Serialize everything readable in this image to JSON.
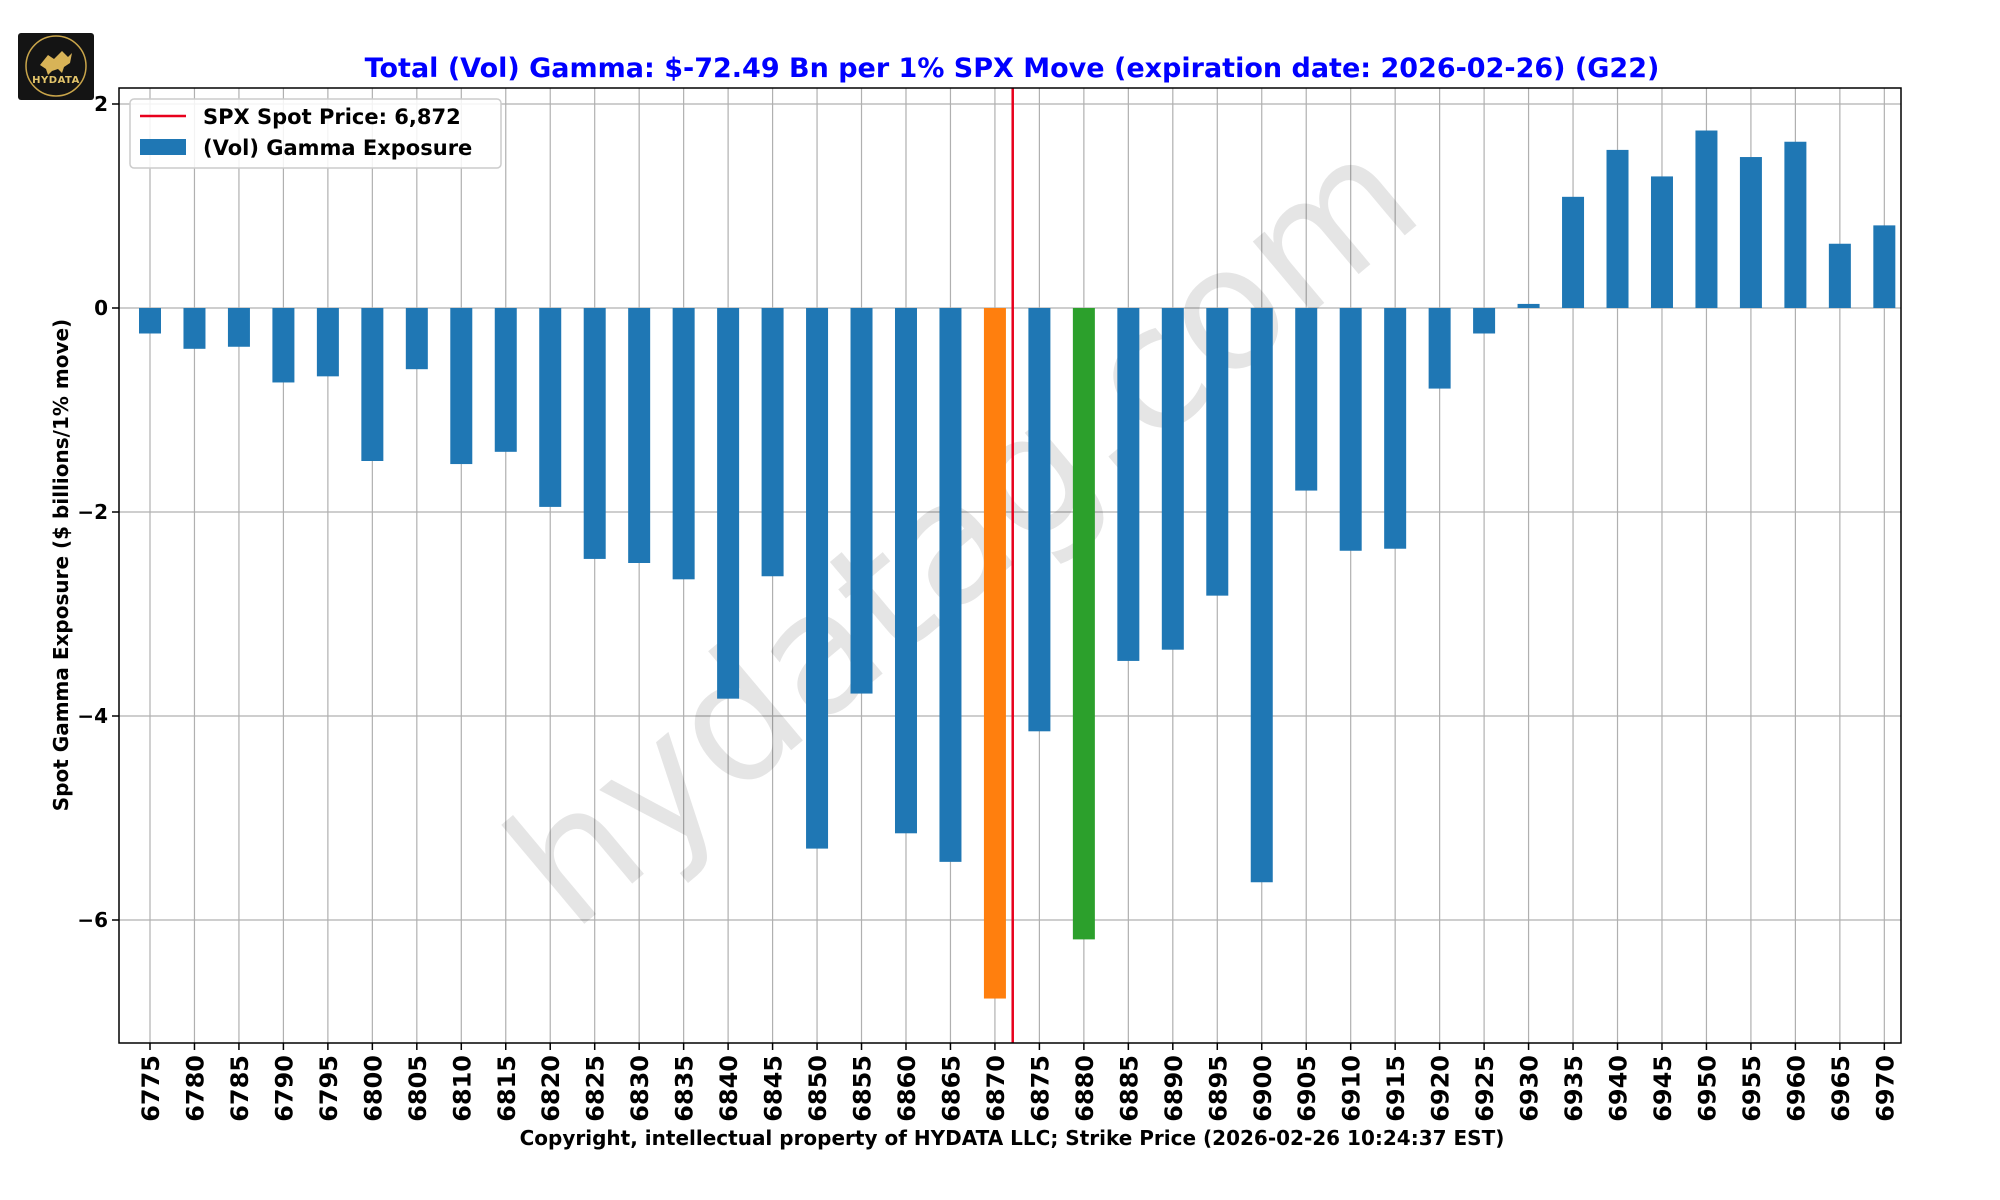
{
  "chart_data": {
    "type": "bar",
    "title": "Total (Vol) Gamma: $-72.49 Bn per 1% SPX Move (expiration date: 2026-02-26) (G22)",
    "xlabel": "Copyright, intellectual property of HYDATA LLC; Strike Price (2026-02-26 10:24:37 EST)",
    "ylabel": "Spot Gamma Exposure ($ billions/1% move)",
    "ylim": [
      -7.2,
      2.1
    ],
    "yticks": [
      2,
      0,
      -2,
      -4,
      -6
    ],
    "ytick_labels": [
      "2",
      "0",
      "−2",
      "−4",
      "−6"
    ],
    "grid": true,
    "legend_position": "top-left",
    "legend": [
      {
        "label": "SPX Spot Price: 6,872",
        "type": "line",
        "color": "#e8001c"
      },
      {
        "label": "(Vol) Gamma Exposure",
        "type": "bar",
        "color": "#1f77b4"
      }
    ],
    "spot_price": 6872,
    "categories": [
      "6775",
      "6780",
      "6785",
      "6790",
      "6795",
      "6800",
      "6805",
      "6810",
      "6815",
      "6820",
      "6825",
      "6830",
      "6835",
      "6840",
      "6845",
      "6850",
      "6855",
      "6860",
      "6865",
      "6870",
      "6875",
      "6880",
      "6885",
      "6890",
      "6895",
      "6900",
      "6905",
      "6910",
      "6915",
      "6920",
      "6925",
      "6930",
      "6935",
      "6940",
      "6945",
      "6950",
      "6955",
      "6960",
      "6965",
      "6970"
    ],
    "values": [
      -0.25,
      -0.4,
      -0.38,
      -0.73,
      -0.67,
      -1.5,
      -0.6,
      -1.53,
      -1.41,
      -1.95,
      -2.46,
      -2.5,
      -2.66,
      -3.83,
      -2.63,
      -5.3,
      -3.78,
      -5.15,
      -5.43,
      -6.77,
      -4.15,
      -6.19,
      -3.46,
      -3.35,
      -2.82,
      -5.63,
      -1.79,
      -2.38,
      -2.36,
      -0.79,
      -0.25,
      0.04,
      1.09,
      1.55,
      1.29,
      1.74,
      1.48,
      1.63,
      0.63,
      0.81
    ],
    "bar_colors": {
      "default": "#1f77b4",
      "6870": "#ff7f0e",
      "6880": "#2ca02c"
    },
    "watermark": "hydatag.com"
  },
  "logo": {
    "text": "HYDATA"
  },
  "colors": {
    "title": "#0000ff",
    "spot_line": "#e8001c",
    "grid": "#b0b0b0"
  }
}
